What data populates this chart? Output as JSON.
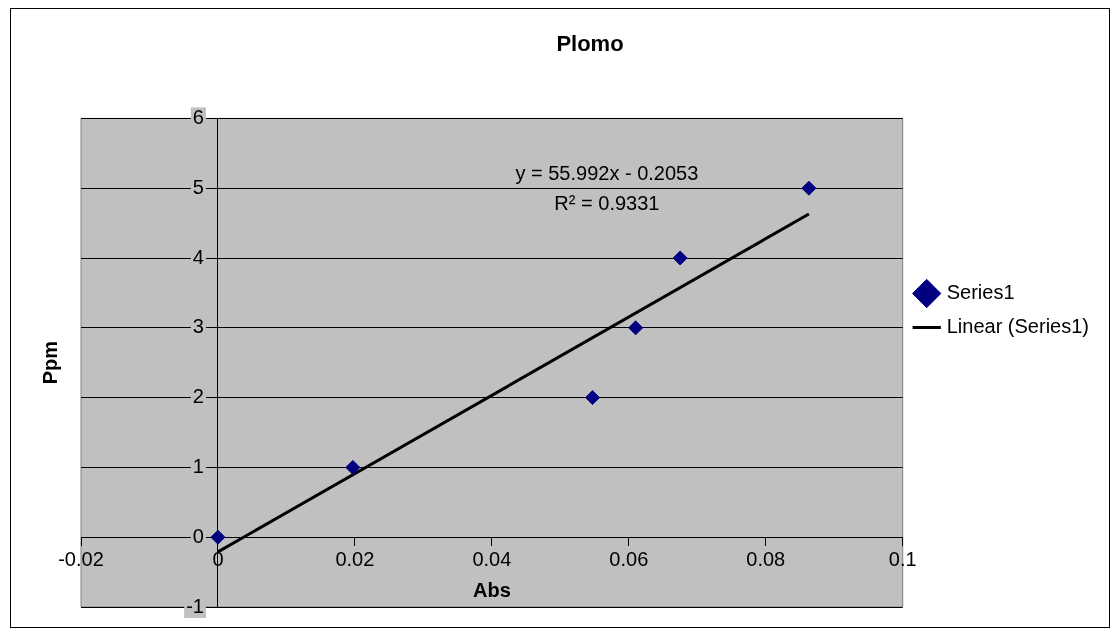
{
  "chart_data": {
    "type": "scatter",
    "title": "Plomo",
    "xlabel": "Abs",
    "ylabel": "Ppm",
    "series": [
      {
        "name": "Series1",
        "type": "scatter",
        "color": "#000080",
        "x": [
          0,
          0.0197,
          0.0547,
          0.061,
          0.0675,
          0.0863
        ],
        "values": [
          0,
          1,
          2,
          3,
          4,
          5
        ]
      },
      {
        "name": "Linear (Series1)",
        "type": "line",
        "color": "#000000",
        "marker": "none",
        "x": [
          0,
          0.0863
        ],
        "values": [
          -0.21,
          4.63
        ]
      }
    ],
    "xlim": [
      -0.02,
      0.1
    ],
    "xticks": [
      -0.02,
      0,
      0.02,
      0.04,
      0.06,
      0.08,
      0.1
    ],
    "ylim": [
      -1,
      6
    ],
    "yticks": [
      -1,
      0,
      1,
      2,
      3,
      4,
      5,
      6
    ],
    "grid": "y",
    "legend": "right",
    "marker": "diamond",
    "annotations": [
      "y = 55.992x - 0.2053",
      "R² = 0.9331"
    ]
  }
}
